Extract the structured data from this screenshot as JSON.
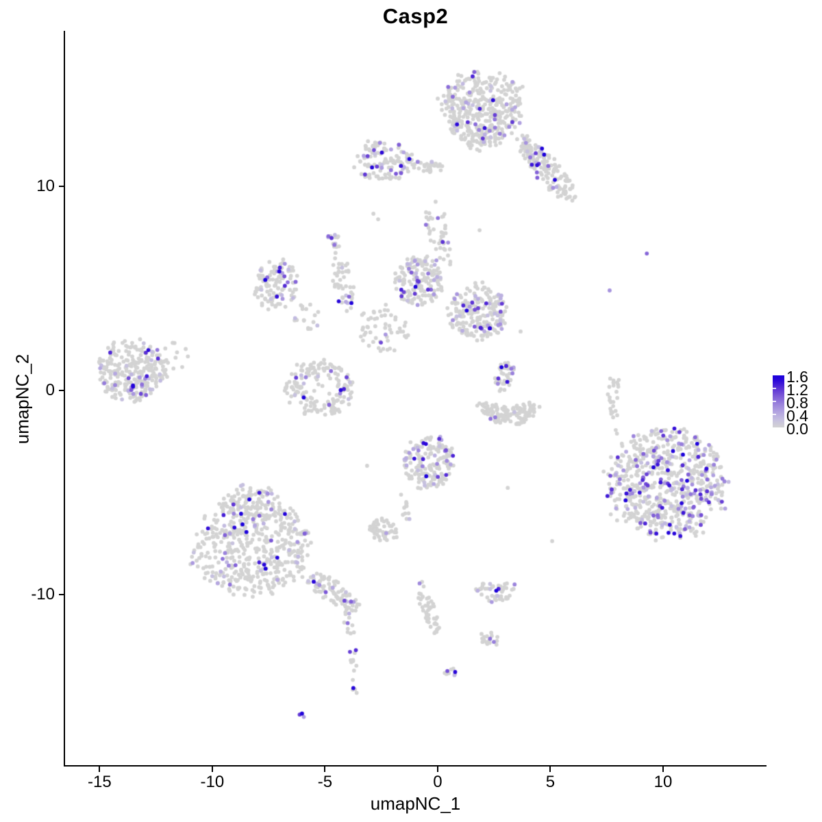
{
  "chart_data": {
    "type": "scatter",
    "title": "Casp2",
    "xlabel": "umapNC_1",
    "ylabel": "umapNC_2",
    "grid": false,
    "background": "#ffffff",
    "point_radius_px": 2.9,
    "axes": {
      "x": {
        "label": "umapNC_1",
        "ticks": [
          -15,
          -10,
          -5,
          0,
          5,
          10
        ],
        "tick_labels": [
          "-15",
          "-10",
          "-5",
          "0",
          "5",
          "10"
        ],
        "range": [
          -16.53,
          14.56
        ]
      },
      "y": {
        "label": "umapNC_2",
        "ticks": [
          10,
          0,
          -10
        ],
        "tick_labels": [
          "10",
          "0",
          "-10"
        ],
        "range": [
          -18.39,
          17.62
        ]
      }
    },
    "legend": {
      "position": "right",
      "ticks": [
        1.6,
        1.2,
        0.8,
        0.4,
        0.0
      ],
      "tick_labels": [
        "1.6",
        "1.2",
        "0.8",
        "0.4",
        "0.0"
      ],
      "min_value": 0.0,
      "max_value": 1.6
    },
    "colors": {
      "low": "#d3d3d3",
      "high": "#1a00dc",
      "stops": [
        [
          0,
          "#d3d3d3"
        ],
        [
          0.15,
          "#c5bfe0"
        ],
        [
          0.3,
          "#b2a3e0"
        ],
        [
          0.45,
          "#9a82dc"
        ],
        [
          0.6,
          "#7e5bd7"
        ],
        [
          0.75,
          "#5b31d5"
        ],
        [
          0.9,
          "#2c08d9"
        ],
        [
          1,
          "#1a00dc"
        ]
      ]
    },
    "clusters": [
      {
        "name": "top-main",
        "u": 1.95,
        "v": 13.7,
        "ru": 1.8,
        "rv": 1.85,
        "angle": 0,
        "n": 430,
        "frac": 0.13,
        "taper": -0.18
      },
      {
        "name": "top-arm",
        "u": 4.85,
        "v": 10.85,
        "ru": 1.95,
        "rv": 0.6,
        "angle": 49,
        "n": 165,
        "frac": 0.11
      },
      {
        "name": "top-left",
        "u": -2.4,
        "v": 11.3,
        "ru": 1.3,
        "rv": 1.0,
        "angle": 0,
        "n": 120,
        "frac": 0.17,
        "pow": 1.6
      },
      {
        "name": "top-connector",
        "u": -0.5,
        "v": 11.0,
        "ru": 0.85,
        "rv": 0.3,
        "angle": 8,
        "n": 34,
        "frac": 0.06
      },
      {
        "name": "neck",
        "u": 0.1,
        "v": 7.7,
        "ru": 0.5,
        "rv": 1.6,
        "angle": -15,
        "n": 42,
        "frac": 0.09
      },
      {
        "name": "small-blob-left",
        "u": -4.6,
        "v": 7.25,
        "ru": 0.38,
        "rv": 0.4,
        "angle": 0,
        "n": 14,
        "frac": 0.25
      },
      {
        "name": "mid-left",
        "u": -7.15,
        "v": 5.15,
        "ru": 0.95,
        "rv": 1.3,
        "angle": 20,
        "n": 115,
        "frac": 0.13
      },
      {
        "name": "mid-left-strand",
        "u": -4.2,
        "v": 5.45,
        "ru": 0.45,
        "rv": 1.5,
        "angle": -10,
        "n": 46,
        "frac": 0.13
      },
      {
        "name": "center-left",
        "u": -0.8,
        "v": 5.4,
        "ru": 1.05,
        "rv": 1.25,
        "angle": 0,
        "n": 165,
        "frac": 0.18
      },
      {
        "name": "center-right",
        "u": 1.8,
        "v": 3.85,
        "ru": 1.3,
        "rv": 1.35,
        "angle": 0,
        "n": 210,
        "frac": 0.17
      },
      {
        "name": "center-sparse",
        "u": -2.4,
        "v": 3.0,
        "ru": 1.05,
        "rv": 1.15,
        "angle": 0,
        "n": 55,
        "frac": 0.1
      },
      {
        "name": "mid-sparse",
        "u": -5.7,
        "v": 3.6,
        "ru": 0.7,
        "rv": 0.7,
        "angle": 0,
        "n": 18,
        "frac": 0.15
      },
      {
        "name": "far-left",
        "u": -13.55,
        "v": 1.0,
        "ru": 1.5,
        "rv": 1.5,
        "angle": 0,
        "n": 265,
        "frac": 0.14
      },
      {
        "name": "far-left-edge",
        "u": -12.0,
        "v": 1.6,
        "ru": 0.95,
        "rv": 1.1,
        "angle": 0,
        "n": 20,
        "frac": 0.05
      },
      {
        "name": "ring",
        "u": -5.2,
        "v": 0.1,
        "ru": 1.5,
        "rv": 1.35,
        "angle": 0,
        "n": 175,
        "frac": 0.11,
        "hollow": 0.5
      },
      {
        "name": "crescent-strand",
        "u": 2.95,
        "v": 0.7,
        "ru": 0.42,
        "rv": 0.75,
        "angle": 25,
        "n": 40,
        "frac": 0.25
      },
      {
        "name": "crescent",
        "u": 3.2,
        "v": -0.7,
        "ru": 1.4,
        "rv": 0.5,
        "angle": 0,
        "n": 130,
        "frac": 0.05,
        "bend": 16
      },
      {
        "name": "right-column",
        "u": 7.85,
        "v": -0.5,
        "ru": 0.3,
        "rv": 1.7,
        "angle": 0,
        "n": 28,
        "frac": 0.04
      },
      {
        "name": "center-bottom",
        "u": -0.35,
        "v": -3.55,
        "ru": 1.1,
        "rv": 1.3,
        "angle": 0,
        "n": 175,
        "frac": 0.22
      },
      {
        "name": "center-bottom-trail",
        "u": -1.4,
        "v": -5.65,
        "ru": 0.3,
        "rv": 0.8,
        "angle": 0,
        "n": 12,
        "frac": 0.05
      },
      {
        "name": "big-right",
        "u": 10.15,
        "v": -4.55,
        "ru": 2.6,
        "rv": 2.7,
        "angle": 0,
        "n": 680,
        "frac": 0.27,
        "pow": 1.4
      },
      {
        "name": "bottom-left",
        "u": -8.2,
        "v": -7.35,
        "ru": 2.45,
        "rv": 2.6,
        "angle": 0,
        "n": 580,
        "frac": 0.1,
        "taper": 0.3
      },
      {
        "name": "bottom-left-tail",
        "u": -4.65,
        "v": -9.85,
        "ru": 1.3,
        "rv": 0.55,
        "angle": 33,
        "n": 85,
        "frac": 0.13
      },
      {
        "name": "small-mid-bottom",
        "u": -2.4,
        "v": -6.9,
        "ru": 0.65,
        "rv": 0.6,
        "angle": 0,
        "n": 48,
        "frac": 0.08
      },
      {
        "name": "bottom-crescent",
        "u": 2.55,
        "v": -9.65,
        "ru": 0.95,
        "rv": 0.45,
        "angle": 0,
        "n": 48,
        "frac": 0.2,
        "bend": 8
      },
      {
        "name": "chain-mid",
        "u": -0.45,
        "v": -10.6,
        "ru": 0.28,
        "rv": 1.4,
        "angle": -20,
        "n": 46,
        "frac": 0.02
      },
      {
        "name": "chain-left",
        "u": -3.85,
        "v": -12.75,
        "ru": 0.25,
        "rv": 2.6,
        "angle": -6,
        "n": 30,
        "frac": 0.2
      },
      {
        "name": "dot-pair-bottom",
        "u": -6.05,
        "v": -15.9,
        "ru": 0.25,
        "rv": 0.15,
        "angle": 20,
        "n": 4,
        "frac": 0.85
      },
      {
        "name": "small-bottom-mid",
        "u": 2.3,
        "v": -12.2,
        "ru": 0.45,
        "rv": 0.45,
        "angle": 0,
        "n": 18,
        "frac": 0.15
      },
      {
        "name": "tiny-bottom",
        "u": 0.55,
        "v": -13.85,
        "ru": 0.3,
        "rv": 0.25,
        "angle": 0,
        "n": 9,
        "frac": 0.3
      }
    ],
    "outliers": [
      [
        9.28,
        6.71,
        0.9
      ],
      [
        7.63,
        4.9,
        0.6
      ],
      [
        -2.85,
        8.66,
        0
      ],
      [
        -2.64,
        8.39,
        0
      ],
      [
        5.08,
        -7.38,
        0
      ],
      [
        3.11,
        -4.77,
        0
      ],
      [
        3.68,
        2.89,
        0
      ],
      [
        1.86,
        7.85,
        0
      ],
      [
        -3.13,
        -3.69,
        0
      ]
    ]
  }
}
